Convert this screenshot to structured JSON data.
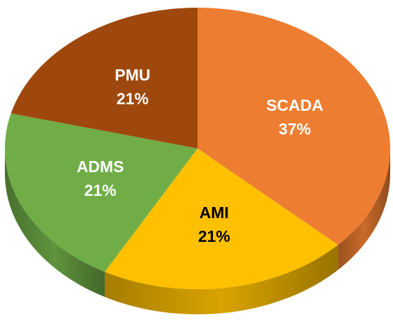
{
  "chart_data": {
    "type": "pie",
    "categories": [
      "SCADA",
      "AMI",
      "ADMS",
      "PMU"
    ],
    "values": [
      37,
      21,
      21,
      21
    ],
    "value_labels": [
      "37%",
      "21%",
      "21%",
      "21%"
    ],
    "colors": [
      "#ed7d31",
      "#ffc000",
      "#70ad47",
      "#9e480e"
    ],
    "label_colors": [
      "#ffffff",
      "#000000",
      "#ffffff",
      "#ffffff"
    ]
  }
}
